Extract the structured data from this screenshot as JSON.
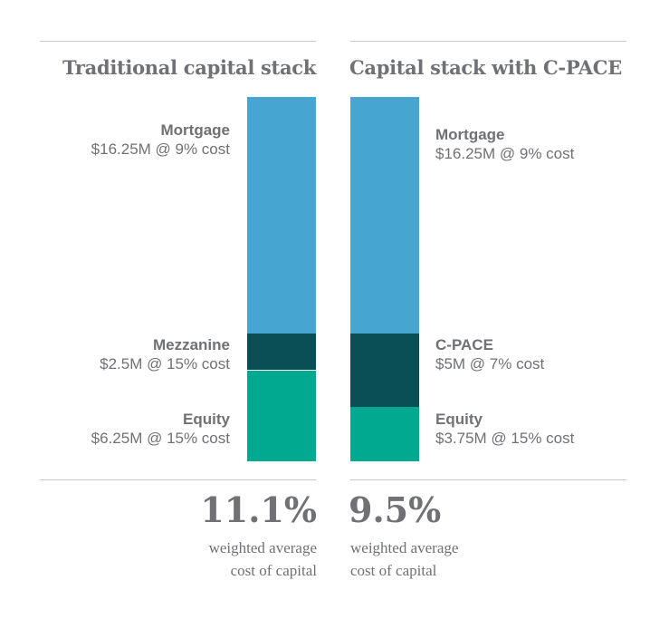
{
  "chart_data": {
    "type": "bar",
    "stacked": true,
    "colors": {
      "Mortgage": "#47a6d1",
      "Mezzanine": "#0a4f55",
      "C-PACE": "#0a4f55",
      "Equity": "#00a98f"
    },
    "text_color": "#6f7174",
    "stacks": [
      {
        "title": "Traditional capital stack",
        "segments": [
          {
            "name": "Mortgage",
            "value": 16.25,
            "label": "$16.25M @ 9% cost"
          },
          {
            "name": "Mezzanine",
            "value": 2.5,
            "label": "$2.5M @ 15% cost"
          },
          {
            "name": "Equity",
            "value": 6.25,
            "label": "$6.25M @ 15% cost"
          }
        ],
        "result_value": "11.1%",
        "result_line1": "weighted average",
        "result_line2": "cost of capital"
      },
      {
        "title": "Capital stack with C-PACE",
        "segments": [
          {
            "name": "Mortgage",
            "value": 16.25,
            "label": "$16.25M @ 9% cost"
          },
          {
            "name": "C-PACE",
            "value": 5,
            "label": "$5M @ 7% cost"
          },
          {
            "name": "Equity",
            "value": 3.75,
            "label": "$3.75M @ 15% cost"
          }
        ],
        "result_value": "9.5%",
        "result_line1": "weighted average",
        "result_line2": "cost of capital"
      }
    ]
  }
}
